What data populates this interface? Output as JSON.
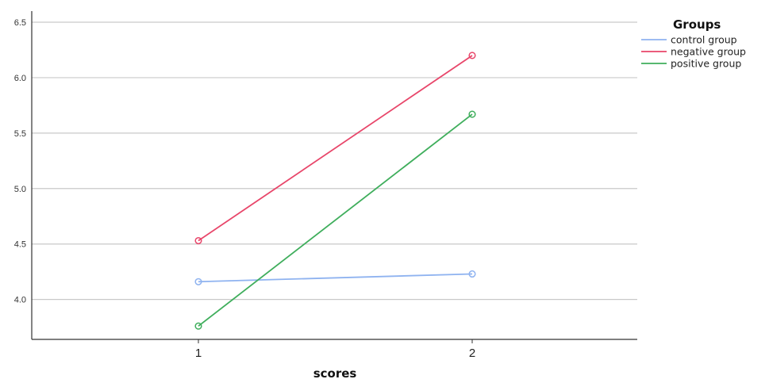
{
  "chart_data": {
    "type": "line",
    "xlabel": "scores",
    "ylabel": "",
    "x": [
      1,
      2
    ],
    "xticks": [
      "1",
      "2"
    ],
    "yticks": [
      "4.0",
      "4.5",
      "5.0",
      "5.5",
      "6.0",
      "6.5"
    ],
    "ytick_values": [
      4.0,
      4.5,
      5.0,
      5.5,
      6.0,
      6.5
    ],
    "ylim": [
      3.64,
      6.6
    ],
    "grid": true,
    "legend": {
      "title": "Groups",
      "placement": "top-right"
    },
    "series": [
      {
        "name": "control group",
        "color": "#8fb3f0",
        "values": [
          4.16,
          4.23
        ]
      },
      {
        "name": "negative group",
        "color": "#e8466a",
        "values": [
          4.53,
          6.2
        ]
      },
      {
        "name": "positive group",
        "color": "#3fae5c",
        "values": [
          3.76,
          5.67
        ]
      }
    ]
  }
}
